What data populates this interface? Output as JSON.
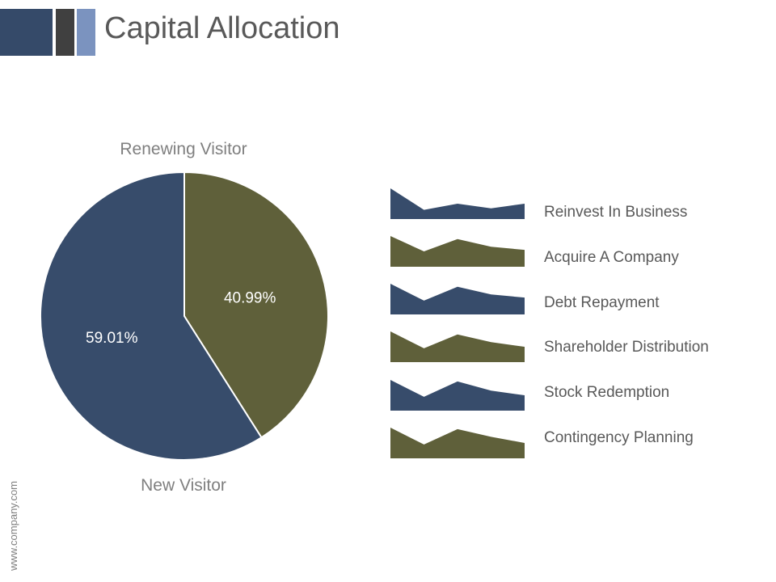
{
  "title": "Capital Allocation",
  "header_colors": [
    "#354a69",
    "#404040",
    "#7b93bf"
  ],
  "chart_data": {
    "type": "pie",
    "categories": [
      "Renewing Visitor",
      "New Visitor"
    ],
    "values": [
      40.99,
      59.01
    ],
    "data_labels": [
      "40.99%",
      "59.01%"
    ],
    "colors": [
      "#5f603a",
      "#374c6b"
    ],
    "top_label": "Renewing Visitor",
    "bottom_label": "New Visitor"
  },
  "items": [
    {
      "label": "Reinvest In Business",
      "color": "#374c6b",
      "shape": [
        1.0,
        0.3,
        0.5,
        0.35,
        0.5
      ]
    },
    {
      "label": "Acquire A Company",
      "color": "#5f603a",
      "shape": [
        1.0,
        0.5,
        0.9,
        0.65,
        0.55
      ]
    },
    {
      "label": "Debt Repayment",
      "color": "#374c6b",
      "shape": [
        1.0,
        0.45,
        0.9,
        0.65,
        0.55
      ]
    },
    {
      "label": "Shareholder Distribution",
      "color": "#5f603a",
      "shape": [
        1.0,
        0.45,
        0.9,
        0.65,
        0.5
      ]
    },
    {
      "label": "Stock Redemption",
      "color": "#374c6b",
      "shape": [
        1.0,
        0.45,
        0.95,
        0.65,
        0.5
      ]
    },
    {
      "label": "Contingency Planning",
      "color": "#5f603a",
      "shape": [
        1.0,
        0.45,
        0.95,
        0.7,
        0.5
      ]
    }
  ],
  "footer_text": "www.company.com"
}
